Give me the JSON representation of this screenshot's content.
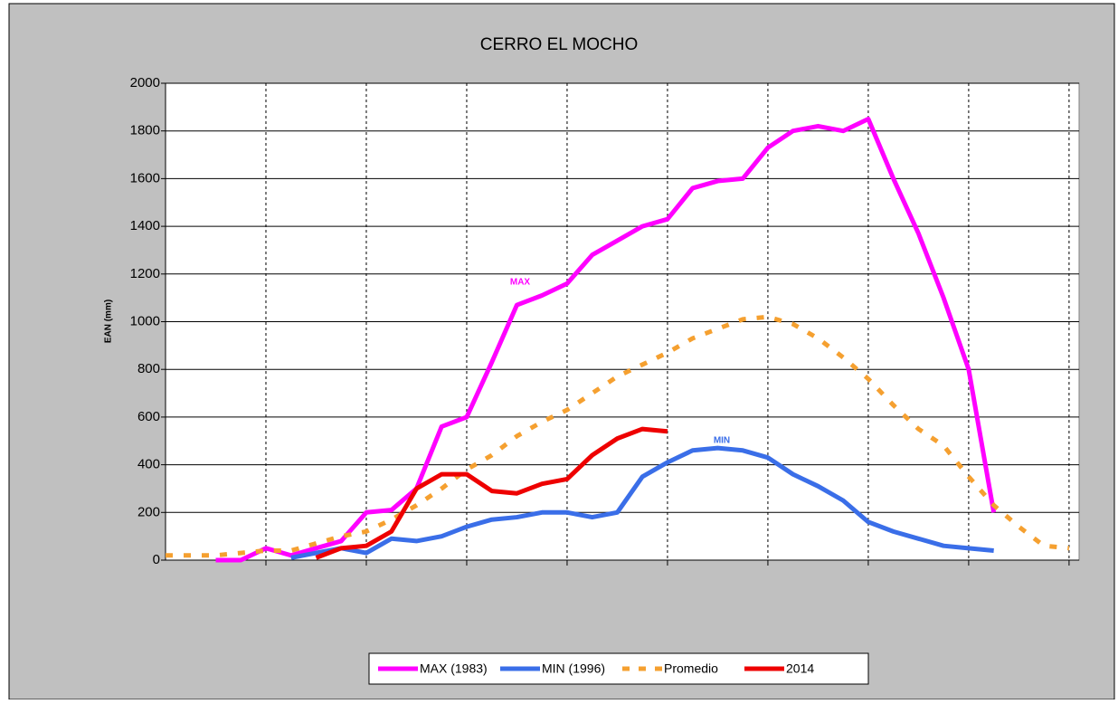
{
  "chart_data": {
    "type": "line",
    "title": "CERRO EL MOCHO",
    "y_label": "EAN (mm)",
    "annotations": [
      "MAX",
      "MIN"
    ],
    "x": [
      0,
      0.25,
      0.5,
      0.75,
      1,
      1.25,
      1.5,
      1.75,
      2,
      2.25,
      2.5,
      2.75,
      3,
      3.25,
      3.5,
      3.75,
      4,
      4.25,
      4.5,
      4.75,
      5,
      5.25,
      5.5,
      5.75,
      6,
      6.25,
      6.5,
      6.75,
      7,
      7.25,
      7.5,
      7.75,
      8,
      8.25,
      8.5,
      8.75,
      9
    ],
    "series": [
      {
        "name": "MAX (1983)",
        "color": "#ff00ff",
        "dash": false,
        "values": [
          null,
          null,
          0,
          0,
          50,
          20,
          50,
          80,
          200,
          210,
          300,
          560,
          600,
          830,
          1070,
          1110,
          1160,
          1280,
          1340,
          1400,
          1430,
          1560,
          1590,
          1600,
          1730,
          1800,
          1820,
          1800,
          1850,
          1600,
          1370,
          1100,
          800,
          200,
          null,
          null,
          null
        ]
      },
      {
        "name": "MIN (1996)",
        "color": "#3a6ee8",
        "dash": false,
        "values": [
          null,
          null,
          null,
          null,
          null,
          10,
          30,
          50,
          30,
          90,
          80,
          100,
          140,
          170,
          180,
          200,
          200,
          180,
          200,
          350,
          410,
          460,
          470,
          460,
          430,
          360,
          310,
          250,
          160,
          120,
          90,
          60,
          50,
          40,
          null,
          null,
          null
        ]
      },
      {
        "name": "Promedio",
        "color": "#f5a030",
        "dash": true,
        "values": [
          20,
          20,
          20,
          30,
          40,
          40,
          70,
          100,
          120,
          170,
          230,
          300,
          380,
          440,
          520,
          580,
          630,
          700,
          770,
          820,
          870,
          930,
          970,
          1010,
          1020,
          990,
          930,
          850,
          760,
          650,
          550,
          480,
          350,
          230,
          140,
          60,
          50
        ]
      },
      {
        "name": "2014",
        "color": "#ee0000",
        "dash": false,
        "values": [
          30,
          null,
          null,
          null,
          null,
          null,
          10,
          50,
          60,
          120,
          300,
          360,
          360,
          290,
          280,
          320,
          340,
          440,
          510,
          550,
          540,
          null,
          null,
          null,
          null,
          null,
          null,
          null,
          null,
          null,
          null,
          null,
          null,
          null,
          null,
          null,
          null
        ]
      }
    ],
    "xlim": [
      0,
      9.1
    ],
    "xticks": [
      1,
      2,
      3,
      4,
      5,
      6,
      7,
      8,
      9
    ],
    "ylim": [
      0,
      2000
    ],
    "yticks": [
      0,
      200,
      400,
      600,
      800,
      1000,
      1200,
      1400,
      1600,
      1800,
      2000
    ],
    "grid": true
  }
}
